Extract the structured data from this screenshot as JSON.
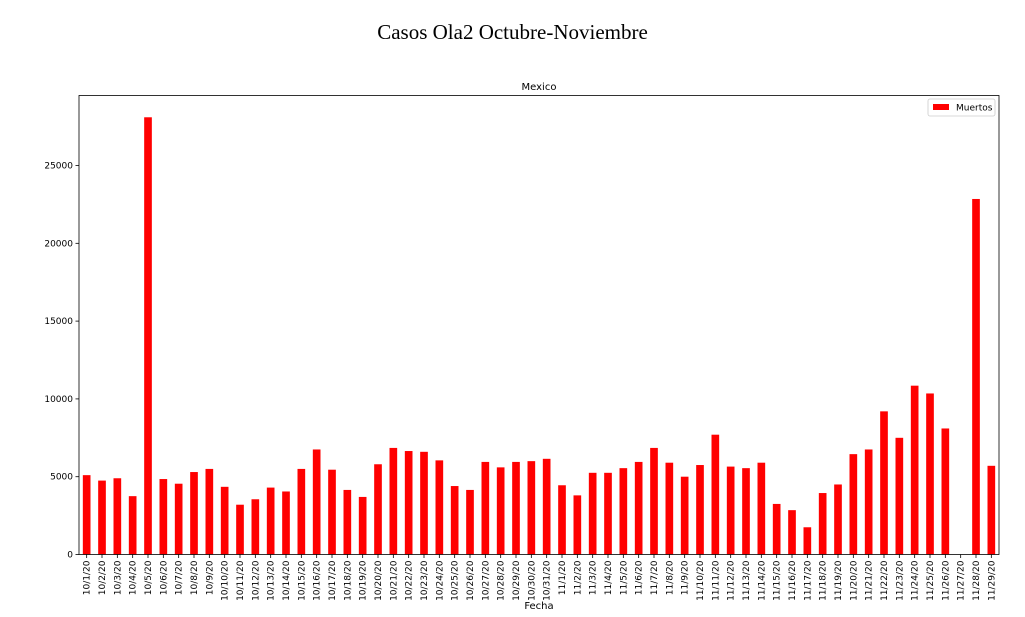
{
  "suptitle": "Casos Ola2 Octubre-Noviembre",
  "chart_data": {
    "type": "bar",
    "title": "Mexico",
    "xlabel": "Fecha",
    "ylabel": "",
    "ylim": [
      0,
      29500
    ],
    "yticks": [
      0,
      5000,
      10000,
      15000,
      20000,
      25000
    ],
    "legend_position": "top-right",
    "grid": false,
    "bar_color": "#ff0000",
    "categories": [
      "10/1/20",
      "10/2/20",
      "10/3/20",
      "10/4/20",
      "10/5/20",
      "10/6/20",
      "10/7/20",
      "10/8/20",
      "10/9/20",
      "10/10/20",
      "10/11/20",
      "10/12/20",
      "10/13/20",
      "10/14/20",
      "10/15/20",
      "10/16/20",
      "10/17/20",
      "10/18/20",
      "10/19/20",
      "10/20/20",
      "10/21/20",
      "10/22/20",
      "10/23/20",
      "10/24/20",
      "10/25/20",
      "10/26/20",
      "10/27/20",
      "10/28/20",
      "10/29/20",
      "10/30/20",
      "10/31/20",
      "11/1/20",
      "11/2/20",
      "11/3/20",
      "11/4/20",
      "11/5/20",
      "11/6/20",
      "11/7/20",
      "11/8/20",
      "11/9/20",
      "11/10/20",
      "11/11/20",
      "11/12/20",
      "11/13/20",
      "11/14/20",
      "11/15/20",
      "11/16/20",
      "11/17/20",
      "11/18/20",
      "11/19/20",
      "11/20/20",
      "11/21/20",
      "11/22/20",
      "11/23/20",
      "11/24/20",
      "11/25/20",
      "11/26/20",
      "11/27/20",
      "11/28/20",
      "11/29/20"
    ],
    "series": [
      {
        "name": "Muertos",
        "values": [
          5100,
          4750,
          4900,
          3750,
          28100,
          4850,
          4550,
          5300,
          5500,
          4350,
          3200,
          3550,
          4300,
          4050,
          5500,
          6750,
          5450,
          4150,
          3700,
          5800,
          6850,
          6650,
          6600,
          6050,
          4400,
          4150,
          5950,
          5600,
          5950,
          6000,
          6150,
          4450,
          3800,
          5250,
          5250,
          5550,
          5950,
          6850,
          5900,
          5000,
          5750,
          7700,
          5650,
          5550,
          5900,
          3250,
          2850,
          1750,
          3950,
          4500,
          6450,
          6750,
          9200,
          7500,
          10850,
          10350,
          8100,
          0,
          22850,
          5700
        ]
      }
    ]
  }
}
